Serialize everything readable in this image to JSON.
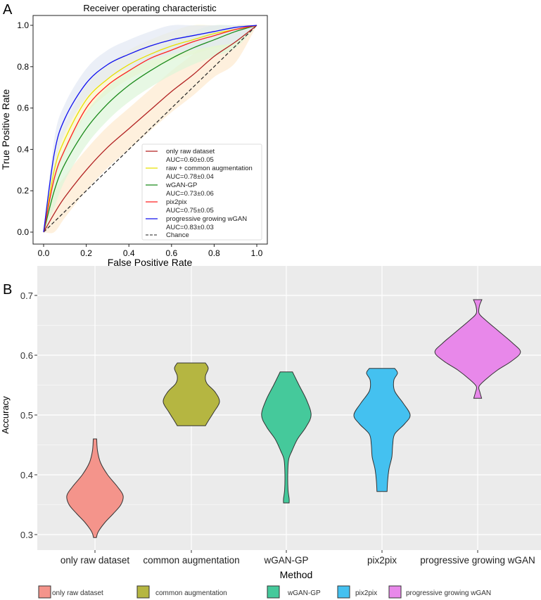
{
  "chart_data": [
    {
      "panel_label": "A",
      "type": "line",
      "title": "Receiver operating characteristic",
      "xlabel": "False Positive Rate",
      "ylabel": "True Positive Rate",
      "xlim": [
        0,
        1
      ],
      "ylim": [
        0,
        1
      ],
      "ticks": [
        "0.0",
        "0.2",
        "0.4",
        "0.6",
        "0.8",
        "1.0"
      ],
      "tick_values": [
        0,
        0.2,
        0.4,
        0.6,
        0.8,
        1.0
      ],
      "legend_position": "bottom-right",
      "x": [
        0,
        0.05,
        0.1,
        0.2,
        0.3,
        0.4,
        0.5,
        0.6,
        0.7,
        0.8,
        0.9,
        1.0
      ],
      "series": [
        {
          "name": "only raw dataset",
          "auc": "AUC=0.60±0.05",
          "color": "#b22222",
          "band_color": "#fde9cf",
          "band": 0.1,
          "values": [
            0,
            0.09,
            0.17,
            0.3,
            0.41,
            0.5,
            0.59,
            0.68,
            0.76,
            0.85,
            0.92,
            1.0
          ]
        },
        {
          "name": "raw + common augmentation",
          "auc": "AUC=0.78±0.04",
          "color": "#e8e000",
          "band_color": "#fbf3c8",
          "band": 0.07,
          "values": [
            0,
            0.3,
            0.45,
            0.64,
            0.74,
            0.81,
            0.86,
            0.9,
            0.93,
            0.96,
            0.98,
            1.0
          ]
        },
        {
          "name": "wGAN-GP",
          "auc": "AUC=0.73±0.06",
          "color": "#1a8a1a",
          "band_color": "#ddf5d8",
          "band": 0.08,
          "values": [
            0,
            0.2,
            0.33,
            0.5,
            0.62,
            0.71,
            0.78,
            0.84,
            0.89,
            0.93,
            0.97,
            1.0
          ]
        },
        {
          "name": "pix2pix",
          "auc": "AUC=0.75±0.05",
          "color": "#ff2020",
          "band_color": null,
          "band": 0,
          "values": [
            0,
            0.26,
            0.4,
            0.6,
            0.71,
            0.78,
            0.84,
            0.88,
            0.92,
            0.95,
            0.98,
            1.0
          ]
        },
        {
          "name": "progressive growing wGAN",
          "auc": "AUC=0.83±0.03",
          "color": "#1010ee",
          "band_color": "#e3e8f3",
          "band": 0.07,
          "values": [
            0,
            0.38,
            0.55,
            0.72,
            0.81,
            0.86,
            0.9,
            0.93,
            0.95,
            0.97,
            0.99,
            1.0
          ]
        }
      ],
      "chance_label": "Chance"
    },
    {
      "panel_label": "B",
      "type": "violin",
      "xlabel": "Method",
      "ylabel": "Accuracy",
      "ylim": [
        0.275,
        0.72
      ],
      "ticks": [
        "0.3",
        "0.4",
        "0.5",
        "0.6",
        "0.7"
      ],
      "tick_values": [
        0.3,
        0.4,
        0.5,
        0.6,
        0.7
      ],
      "legend_position": "bottom",
      "categories": [
        "only raw dataset",
        "common augmentation",
        "wGAN-GP",
        "pix2pix",
        "progressive growing wGAN"
      ],
      "colors": [
        "#f4948b",
        "#b5b641",
        "#45c99b",
        "#44c1f0",
        "#e888ea"
      ],
      "profiles": [
        [
          [
            0.46,
            0.06
          ],
          [
            0.44,
            0.09
          ],
          [
            0.42,
            0.2
          ],
          [
            0.4,
            0.45
          ],
          [
            0.38,
            0.8
          ],
          [
            0.365,
            1.0
          ],
          [
            0.35,
            0.92
          ],
          [
            0.335,
            0.65
          ],
          [
            0.32,
            0.35
          ],
          [
            0.305,
            0.12
          ],
          [
            0.295,
            0.05
          ]
        ],
        [
          [
            0.587,
            0.5
          ],
          [
            0.578,
            0.6
          ],
          [
            0.565,
            0.5
          ],
          [
            0.553,
            0.55
          ],
          [
            0.538,
            0.85
          ],
          [
            0.522,
            1.0
          ],
          [
            0.505,
            0.8
          ],
          [
            0.49,
            0.6
          ],
          [
            0.482,
            0.5
          ]
        ],
        [
          [
            0.572,
            0.22
          ],
          [
            0.55,
            0.45
          ],
          [
            0.525,
            0.72
          ],
          [
            0.5,
            0.88
          ],
          [
            0.48,
            0.7
          ],
          [
            0.46,
            0.4
          ],
          [
            0.44,
            0.2
          ],
          [
            0.425,
            0.08
          ],
          [
            0.4,
            0.05
          ],
          [
            0.375,
            0.06
          ],
          [
            0.36,
            0.1
          ],
          [
            0.353,
            0.1
          ]
        ],
        [
          [
            0.578,
            0.45
          ],
          [
            0.57,
            0.55
          ],
          [
            0.558,
            0.42
          ],
          [
            0.54,
            0.45
          ],
          [
            0.52,
            0.75
          ],
          [
            0.5,
            1.0
          ],
          [
            0.485,
            0.8
          ],
          [
            0.468,
            0.45
          ],
          [
            0.45,
            0.38
          ],
          [
            0.43,
            0.35
          ],
          [
            0.41,
            0.25
          ],
          [
            0.39,
            0.2
          ],
          [
            0.372,
            0.18
          ]
        ],
        [
          [
            0.693,
            0.15
          ],
          [
            0.682,
            0.06
          ],
          [
            0.67,
            0.05
          ],
          [
            0.66,
            0.25
          ],
          [
            0.64,
            0.75
          ],
          [
            0.62,
            1.25
          ],
          [
            0.605,
            1.52
          ],
          [
            0.59,
            1.2
          ],
          [
            0.575,
            0.7
          ],
          [
            0.56,
            0.3
          ],
          [
            0.548,
            0.05
          ],
          [
            0.538,
            0.08
          ],
          [
            0.528,
            0.14
          ]
        ]
      ]
    }
  ]
}
